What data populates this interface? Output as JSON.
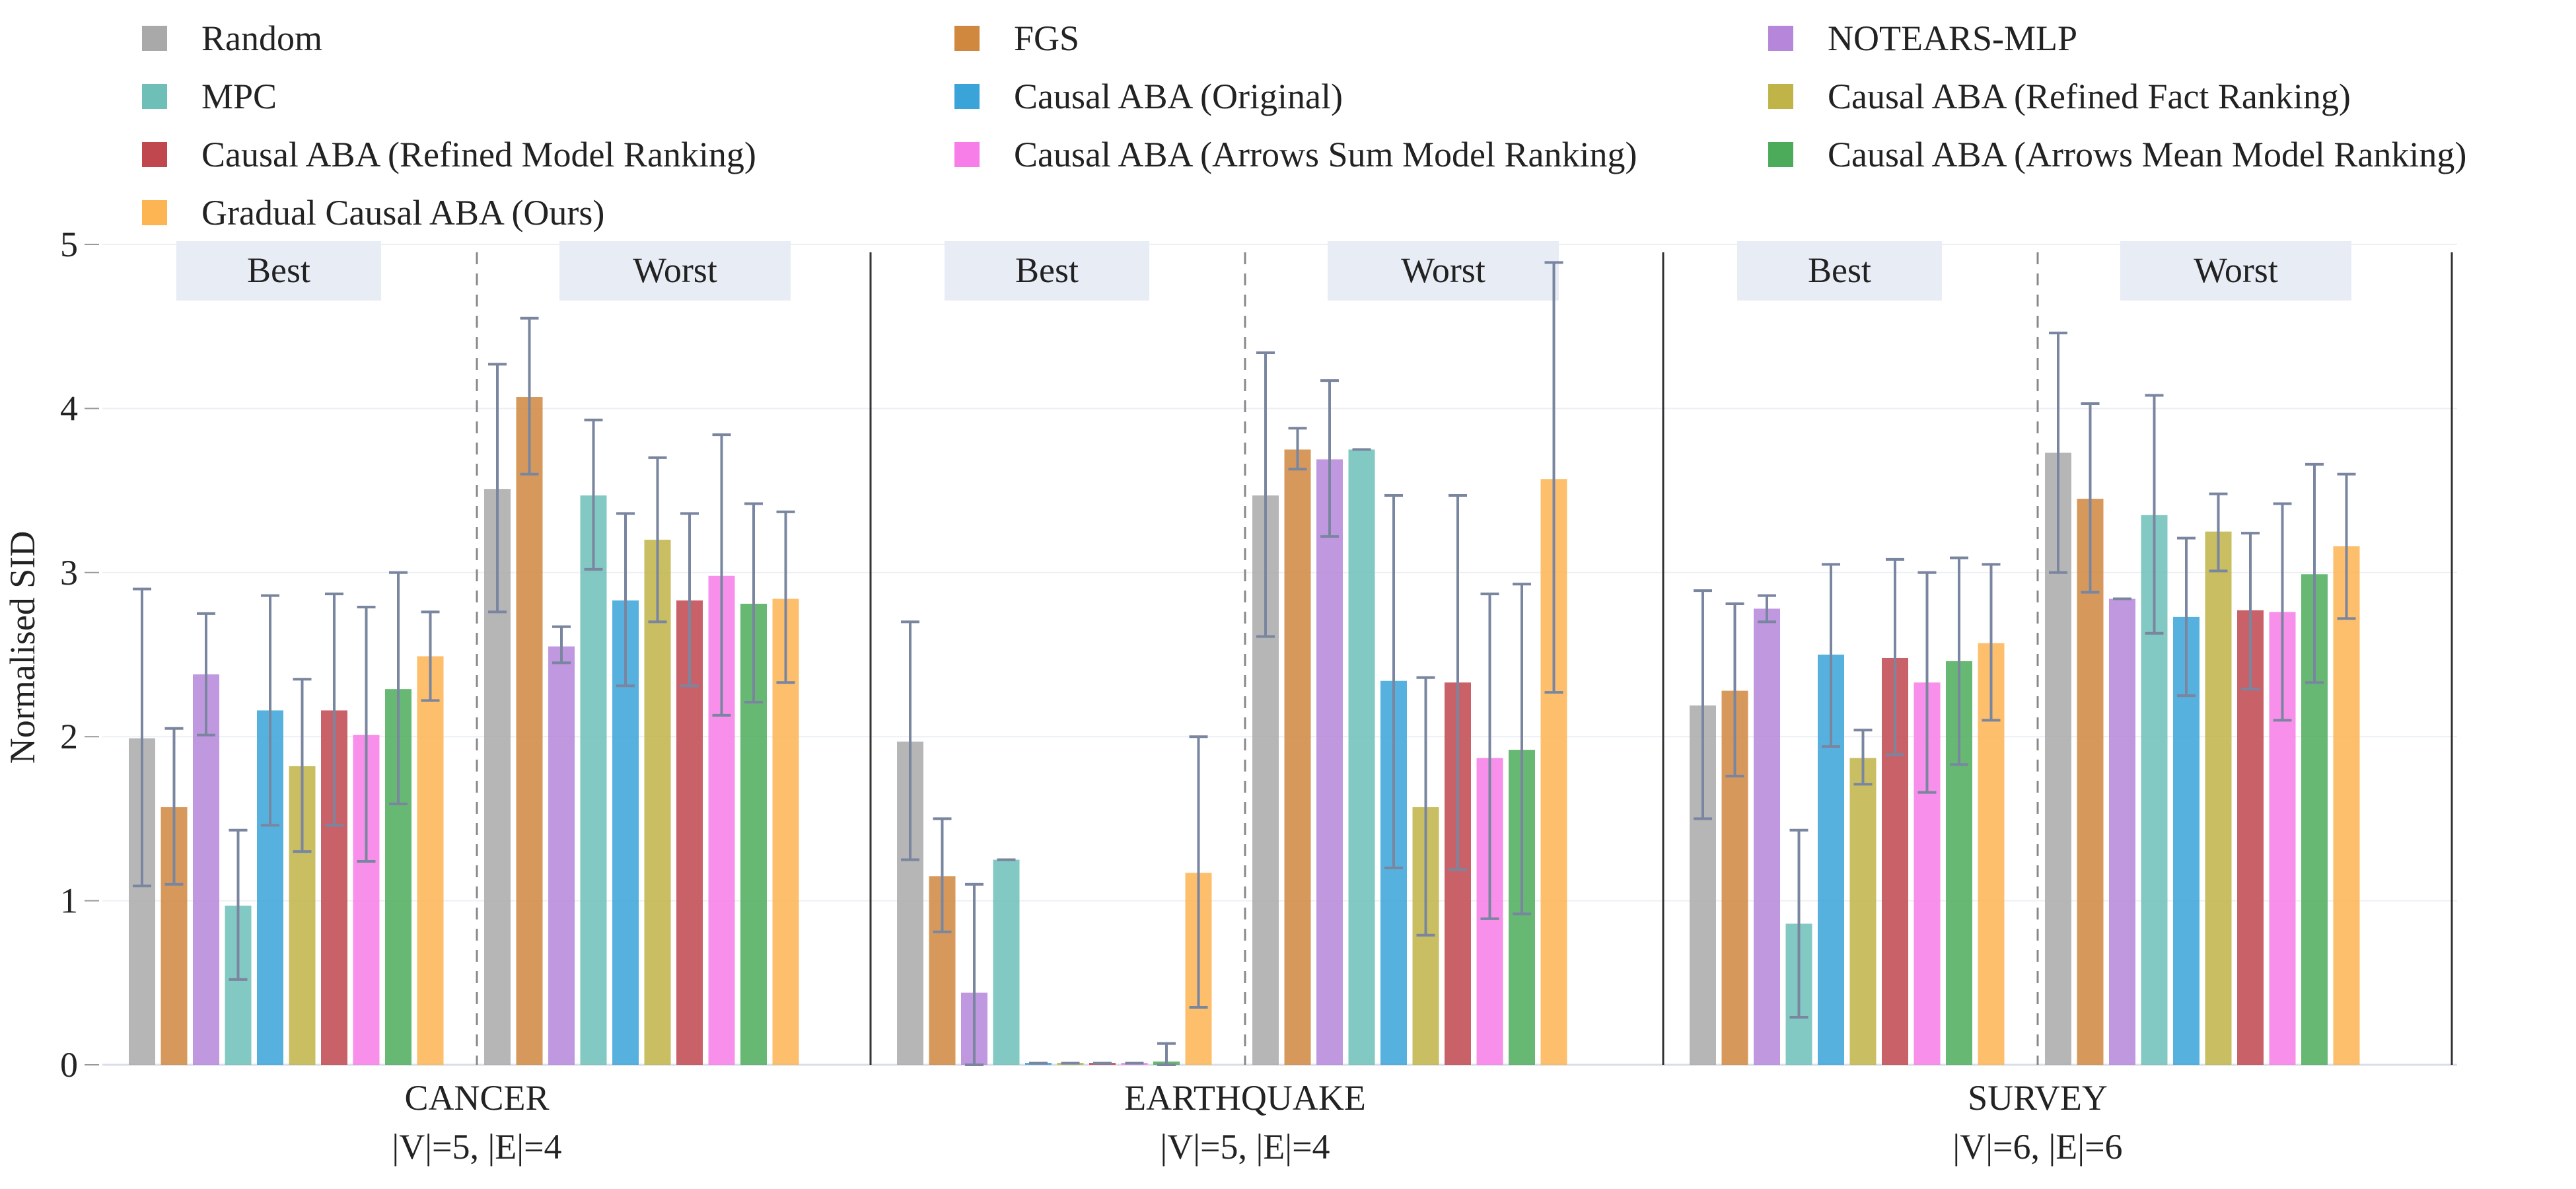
{
  "chart_data": {
    "type": "bar",
    "ylabel": "Normalised SID",
    "ylim": [
      0,
      5
    ],
    "yticks": [
      "0",
      "1",
      "2",
      "3",
      "4",
      "5"
    ],
    "grid": true,
    "legend_position": "top",
    "error_bars": true,
    "error_bar_color": "#7a86a0",
    "group_labels": [
      "Best",
      "Worst"
    ],
    "datasets": [
      {
        "name": "CANCER",
        "subtitle": "|V|=5, |E|=4"
      },
      {
        "name": "EARTHQUAKE",
        "subtitle": "|V|=5, |E|=4"
      },
      {
        "name": "SURVEY",
        "subtitle": "|V|=6, |E|=6"
      }
    ],
    "series": [
      {
        "name": "Random",
        "color": "#a9a9a9",
        "best": [
          [
            1.99,
            1.09,
            2.9
          ],
          [
            1.97,
            1.25,
            2.7
          ],
          [
            2.19,
            1.5,
            2.89
          ]
        ],
        "worst": [
          [
            3.51,
            2.76,
            4.27
          ],
          [
            3.47,
            2.61,
            4.34
          ],
          [
            3.73,
            3.0,
            4.46
          ]
        ]
      },
      {
        "name": "FGS",
        "color": "#d0873e",
        "best": [
          [
            1.57,
            1.1,
            2.05
          ],
          [
            1.15,
            0.81,
            1.5
          ],
          [
            2.28,
            1.76,
            2.81
          ]
        ],
        "worst": [
          [
            4.07,
            3.6,
            4.55
          ],
          [
            3.75,
            3.63,
            3.88
          ],
          [
            3.45,
            2.88,
            4.03
          ]
        ]
      },
      {
        "name": "NOTEARS-MLP",
        "color": "#b586d9",
        "best": [
          [
            2.38,
            2.01,
            2.75
          ],
          [
            0.44,
            0.0,
            1.1
          ],
          [
            2.78,
            2.7,
            2.86
          ]
        ],
        "worst": [
          [
            2.55,
            2.45,
            2.67
          ],
          [
            3.69,
            3.22,
            4.17
          ],
          [
            2.84,
            2.84,
            2.84
          ]
        ]
      },
      {
        "name": "MPC",
        "color": "#6dbfb8",
        "best": [
          [
            0.97,
            0.52,
            1.43
          ],
          [
            1.25,
            1.25,
            1.25
          ],
          [
            0.86,
            0.29,
            1.43
          ]
        ],
        "worst": [
          [
            3.47,
            3.02,
            3.93
          ],
          [
            3.75,
            3.75,
            3.75
          ],
          [
            3.35,
            2.63,
            4.08
          ]
        ]
      },
      {
        "name": "Causal ABA (Original)",
        "color": "#3aa3d8",
        "best": [
          [
            2.16,
            1.46,
            2.86
          ],
          [
            0.01,
            0.01,
            0.01
          ],
          [
            2.5,
            1.94,
            3.05
          ]
        ],
        "worst": [
          [
            2.83,
            2.31,
            3.36
          ],
          [
            2.34,
            1.2,
            3.47
          ],
          [
            2.73,
            2.25,
            3.21
          ]
        ]
      },
      {
        "name": "Causal ABA (Refined Fact Ranking)",
        "color": "#c0b347",
        "best": [
          [
            1.82,
            1.3,
            2.35
          ],
          [
            0.01,
            0.01,
            0.01
          ],
          [
            1.87,
            1.71,
            2.04
          ]
        ],
        "worst": [
          [
            3.2,
            2.7,
            3.7
          ],
          [
            1.57,
            0.79,
            2.36
          ],
          [
            3.25,
            3.01,
            3.48
          ]
        ]
      },
      {
        "name": "Causal ABA (Refined Model Ranking)",
        "color": "#c0474e",
        "best": [
          [
            2.16,
            1.46,
            2.87
          ],
          [
            0.01,
            0.01,
            0.01
          ],
          [
            2.48,
            1.89,
            3.08
          ]
        ],
        "worst": [
          [
            2.83,
            2.31,
            3.36
          ],
          [
            2.33,
            1.19,
            3.47
          ],
          [
            2.77,
            2.29,
            3.24
          ]
        ]
      },
      {
        "name": "Causal ABA (Arrows Sum Model Ranking)",
        "color": "#f77de8",
        "best": [
          [
            2.01,
            1.24,
            2.79
          ],
          [
            0.01,
            0.01,
            0.01
          ],
          [
            2.33,
            1.66,
            3.0
          ]
        ],
        "worst": [
          [
            2.98,
            2.13,
            3.84
          ],
          [
            1.87,
            0.89,
            2.87
          ],
          [
            2.76,
            2.1,
            3.42
          ]
        ]
      },
      {
        "name": "Causal ABA (Arrows Mean Model Ranking)",
        "color": "#4cab5a",
        "best": [
          [
            2.29,
            1.59,
            3.0
          ],
          [
            0.02,
            0.0,
            0.13
          ],
          [
            2.46,
            1.83,
            3.09
          ]
        ],
        "worst": [
          [
            2.81,
            2.21,
            3.42
          ],
          [
            1.92,
            0.92,
            2.93
          ],
          [
            2.99,
            2.33,
            3.66
          ]
        ]
      },
      {
        "name": "Gradual Causal ABA (Ours)",
        "color": "#fdb452",
        "best": [
          [
            2.49,
            2.22,
            2.76
          ],
          [
            1.17,
            0.35,
            2.0
          ],
          [
            2.57,
            2.1,
            3.05
          ]
        ],
        "worst": [
          [
            2.84,
            2.33,
            3.37
          ],
          [
            3.57,
            2.27,
            4.89
          ],
          [
            3.16,
            2.72,
            3.6
          ]
        ]
      }
    ]
  }
}
